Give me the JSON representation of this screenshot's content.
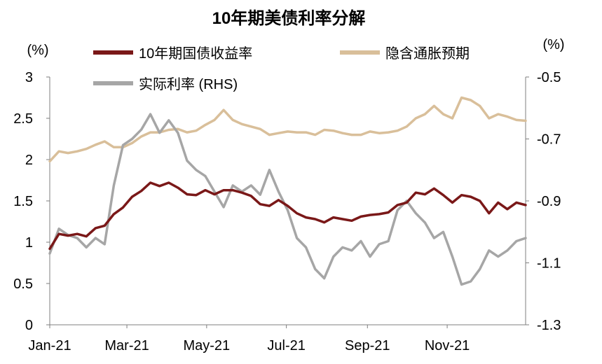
{
  "chart_data": {
    "type": "line",
    "title": "10年期美债利率分解",
    "y_left_unit": "(%)",
    "y_right_unit": "(%)",
    "y_left": {
      "min": 0,
      "max": 3,
      "ticks": [
        "0",
        "0.5",
        "1",
        "1.5",
        "2",
        "2.5",
        "3"
      ]
    },
    "y_right": {
      "min": -1.3,
      "max": -0.5,
      "ticks": [
        "-1.3",
        "-1.1",
        "-0.9",
        "-0.7",
        "-0.5"
      ]
    },
    "x_ticks": [
      "Jan-21",
      "Mar-21",
      "May-21",
      "Jul-21",
      "Sep-21",
      "Nov-21"
    ],
    "grid": false,
    "legend_position": "top",
    "series": [
      {
        "name": "10年期国债收益率",
        "axis": "left",
        "color": "#7a1818",
        "values": [
          [
            "2021-01-01",
            0.92
          ],
          [
            "2021-01-08",
            1.1
          ],
          [
            "2021-01-15",
            1.08
          ],
          [
            "2021-01-22",
            1.1
          ],
          [
            "2021-01-29",
            1.07
          ],
          [
            "2021-02-05",
            1.17
          ],
          [
            "2021-02-12",
            1.2
          ],
          [
            "2021-02-19",
            1.34
          ],
          [
            "2021-02-26",
            1.42
          ],
          [
            "2021-03-05",
            1.55
          ],
          [
            "2021-03-12",
            1.62
          ],
          [
            "2021-03-19",
            1.72
          ],
          [
            "2021-03-26",
            1.68
          ],
          [
            "2021-04-02",
            1.72
          ],
          [
            "2021-04-09",
            1.66
          ],
          [
            "2021-04-16",
            1.58
          ],
          [
            "2021-04-23",
            1.57
          ],
          [
            "2021-04-30",
            1.63
          ],
          [
            "2021-05-07",
            1.58
          ],
          [
            "2021-05-14",
            1.63
          ],
          [
            "2021-05-21",
            1.63
          ],
          [
            "2021-05-28",
            1.6
          ],
          [
            "2021-06-04",
            1.56
          ],
          [
            "2021-06-11",
            1.46
          ],
          [
            "2021-06-18",
            1.44
          ],
          [
            "2021-06-25",
            1.51
          ],
          [
            "2021-07-02",
            1.44
          ],
          [
            "2021-07-09",
            1.35
          ],
          [
            "2021-07-16",
            1.3
          ],
          [
            "2021-07-23",
            1.28
          ],
          [
            "2021-07-30",
            1.24
          ],
          [
            "2021-08-06",
            1.3
          ],
          [
            "2021-08-13",
            1.28
          ],
          [
            "2021-08-20",
            1.26
          ],
          [
            "2021-08-27",
            1.31
          ],
          [
            "2021-09-03",
            1.33
          ],
          [
            "2021-09-10",
            1.34
          ],
          [
            "2021-09-17",
            1.36
          ],
          [
            "2021-09-24",
            1.45
          ],
          [
            "2021-10-01",
            1.48
          ],
          [
            "2021-10-08",
            1.6
          ],
          [
            "2021-10-15",
            1.58
          ],
          [
            "2021-10-22",
            1.65
          ],
          [
            "2021-10-29",
            1.57
          ],
          [
            "2021-11-05",
            1.48
          ],
          [
            "2021-11-12",
            1.57
          ],
          [
            "2021-11-19",
            1.55
          ],
          [
            "2021-11-26",
            1.5
          ],
          [
            "2021-12-03",
            1.35
          ],
          [
            "2021-12-10",
            1.48
          ],
          [
            "2021-12-17",
            1.4
          ],
          [
            "2021-12-24",
            1.48
          ],
          [
            "2021-12-31",
            1.45
          ]
        ]
      },
      {
        "name": "隐含通胀预期",
        "axis": "left",
        "color": "#d9bf9a",
        "values": [
          [
            "2021-01-01",
            1.98
          ],
          [
            "2021-01-08",
            2.1
          ],
          [
            "2021-01-15",
            2.08
          ],
          [
            "2021-01-22",
            2.1
          ],
          [
            "2021-01-29",
            2.13
          ],
          [
            "2021-02-05",
            2.18
          ],
          [
            "2021-02-12",
            2.22
          ],
          [
            "2021-02-19",
            2.15
          ],
          [
            "2021-02-26",
            2.15
          ],
          [
            "2021-03-05",
            2.2
          ],
          [
            "2021-03-12",
            2.28
          ],
          [
            "2021-03-19",
            2.33
          ],
          [
            "2021-03-26",
            2.33
          ],
          [
            "2021-04-02",
            2.36
          ],
          [
            "2021-04-09",
            2.37
          ],
          [
            "2021-04-16",
            2.33
          ],
          [
            "2021-04-23",
            2.35
          ],
          [
            "2021-04-30",
            2.42
          ],
          [
            "2021-05-07",
            2.48
          ],
          [
            "2021-05-14",
            2.6
          ],
          [
            "2021-05-21",
            2.48
          ],
          [
            "2021-05-28",
            2.43
          ],
          [
            "2021-06-04",
            2.4
          ],
          [
            "2021-06-11",
            2.37
          ],
          [
            "2021-06-18",
            2.3
          ],
          [
            "2021-06-25",
            2.32
          ],
          [
            "2021-07-02",
            2.34
          ],
          [
            "2021-07-09",
            2.33
          ],
          [
            "2021-07-16",
            2.33
          ],
          [
            "2021-07-23",
            2.3
          ],
          [
            "2021-07-30",
            2.36
          ],
          [
            "2021-08-06",
            2.35
          ],
          [
            "2021-08-13",
            2.32
          ],
          [
            "2021-08-20",
            2.3
          ],
          [
            "2021-08-27",
            2.3
          ],
          [
            "2021-09-03",
            2.34
          ],
          [
            "2021-09-10",
            2.32
          ],
          [
            "2021-09-17",
            2.33
          ],
          [
            "2021-09-24",
            2.35
          ],
          [
            "2021-10-01",
            2.4
          ],
          [
            "2021-10-08",
            2.5
          ],
          [
            "2021-10-15",
            2.55
          ],
          [
            "2021-10-22",
            2.65
          ],
          [
            "2021-10-29",
            2.55
          ],
          [
            "2021-11-05",
            2.5
          ],
          [
            "2021-11-12",
            2.75
          ],
          [
            "2021-11-19",
            2.72
          ],
          [
            "2021-11-26",
            2.65
          ],
          [
            "2021-12-03",
            2.5
          ],
          [
            "2021-12-10",
            2.55
          ],
          [
            "2021-12-17",
            2.52
          ],
          [
            "2021-12-24",
            2.48
          ],
          [
            "2021-12-31",
            2.47
          ]
        ]
      },
      {
        "name": "实际利率 (RHS)",
        "axis": "right",
        "color": "#a6a6a6",
        "values": [
          [
            "2021-01-01",
            -1.07
          ],
          [
            "2021-01-08",
            -0.99
          ],
          [
            "2021-01-15",
            -1.01
          ],
          [
            "2021-01-22",
            -1.02
          ],
          [
            "2021-01-29",
            -1.05
          ],
          [
            "2021-02-05",
            -1.02
          ],
          [
            "2021-02-12",
            -1.04
          ],
          [
            "2021-02-19",
            -0.85
          ],
          [
            "2021-02-26",
            -0.72
          ],
          [
            "2021-03-05",
            -0.7
          ],
          [
            "2021-03-12",
            -0.67
          ],
          [
            "2021-03-19",
            -0.62
          ],
          [
            "2021-03-26",
            -0.68
          ],
          [
            "2021-04-02",
            -0.64
          ],
          [
            "2021-04-09",
            -0.68
          ],
          [
            "2021-04-16",
            -0.77
          ],
          [
            "2021-04-23",
            -0.8
          ],
          [
            "2021-04-30",
            -0.82
          ],
          [
            "2021-05-07",
            -0.87
          ],
          [
            "2021-05-14",
            -0.92
          ],
          [
            "2021-05-21",
            -0.85
          ],
          [
            "2021-05-28",
            -0.87
          ],
          [
            "2021-06-04",
            -0.85
          ],
          [
            "2021-06-11",
            -0.88
          ],
          [
            "2021-06-18",
            -0.8
          ],
          [
            "2021-06-25",
            -0.87
          ],
          [
            "2021-07-02",
            -0.93
          ],
          [
            "2021-07-09",
            -1.02
          ],
          [
            "2021-07-16",
            -1.05
          ],
          [
            "2021-07-23",
            -1.12
          ],
          [
            "2021-07-30",
            -1.15
          ],
          [
            "2021-08-06",
            -1.08
          ],
          [
            "2021-08-13",
            -1.05
          ],
          [
            "2021-08-20",
            -1.06
          ],
          [
            "2021-08-27",
            -1.03
          ],
          [
            "2021-09-03",
            -1.08
          ],
          [
            "2021-09-10",
            -1.04
          ],
          [
            "2021-09-17",
            -1.03
          ],
          [
            "2021-09-24",
            -0.93
          ],
          [
            "2021-10-01",
            -0.9
          ],
          [
            "2021-10-08",
            -0.94
          ],
          [
            "2021-10-15",
            -0.97
          ],
          [
            "2021-10-22",
            -1.02
          ],
          [
            "2021-10-29",
            -1.0
          ],
          [
            "2021-11-05",
            -1.08
          ],
          [
            "2021-11-12",
            -1.17
          ],
          [
            "2021-11-19",
            -1.16
          ],
          [
            "2021-11-26",
            -1.12
          ],
          [
            "2021-12-03",
            -1.06
          ],
          [
            "2021-12-10",
            -1.08
          ],
          [
            "2021-12-17",
            -1.06
          ],
          [
            "2021-12-24",
            -1.03
          ],
          [
            "2021-12-31",
            -1.02
          ]
        ]
      }
    ]
  }
}
